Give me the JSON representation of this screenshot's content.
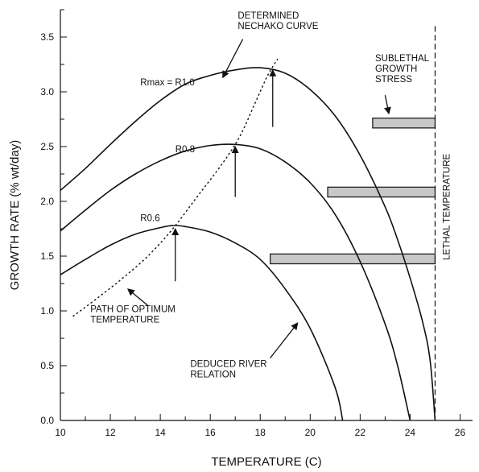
{
  "chart_data": {
    "type": "line",
    "xlabel": "TEMPERATURE (C)",
    "ylabel": "GROWTH RATE (% wt/day)",
    "xlim": [
      10,
      26.5
    ],
    "ylim": [
      0,
      3.75
    ],
    "x_ticks": [
      10,
      12,
      14,
      16,
      18,
      20,
      22,
      24,
      26
    ],
    "y_ticks": [
      0.0,
      0.5,
      1.0,
      1.5,
      2.0,
      2.5,
      3.0,
      3.5
    ],
    "x_tick_labels": [
      "10",
      "12",
      "14",
      "16",
      "18",
      "20",
      "22",
      "24",
      "26"
    ],
    "y_tick_labels": [
      "0.0",
      "0.5",
      "1.0",
      "1.5",
      "2.0",
      "2.5",
      "3.0",
      "3.5"
    ],
    "grid": false,
    "series": [
      {
        "name": "Rmax = R1.0",
        "style": "solid",
        "points": [
          [
            10,
            2.1
          ],
          [
            11,
            2.3
          ],
          [
            12,
            2.52
          ],
          [
            13,
            2.73
          ],
          [
            14,
            2.92
          ],
          [
            15,
            3.07
          ],
          [
            16,
            3.15
          ],
          [
            17,
            3.2
          ],
          [
            18,
            3.22
          ],
          [
            19,
            3.17
          ],
          [
            20,
            3.02
          ],
          [
            21,
            2.78
          ],
          [
            22,
            2.42
          ],
          [
            23,
            1.95
          ],
          [
            23.5,
            1.65
          ],
          [
            24,
            1.3
          ],
          [
            24.5,
            0.9
          ],
          [
            24.8,
            0.55
          ],
          [
            25,
            0.0
          ]
        ]
      },
      {
        "name": "R0.8",
        "style": "solid",
        "points": [
          [
            10,
            1.73
          ],
          [
            11,
            1.92
          ],
          [
            12,
            2.1
          ],
          [
            13,
            2.25
          ],
          [
            14,
            2.37
          ],
          [
            15,
            2.46
          ],
          [
            16,
            2.51
          ],
          [
            17,
            2.52
          ],
          [
            18,
            2.48
          ],
          [
            19,
            2.36
          ],
          [
            20,
            2.17
          ],
          [
            21,
            1.88
          ],
          [
            22,
            1.45
          ],
          [
            23,
            0.88
          ],
          [
            23.5,
            0.5
          ],
          [
            24,
            0.0
          ]
        ]
      },
      {
        "name": "R0.6",
        "style": "solid",
        "points": [
          [
            10,
            1.33
          ],
          [
            11,
            1.47
          ],
          [
            12,
            1.6
          ],
          [
            13,
            1.7
          ],
          [
            14,
            1.76
          ],
          [
            14.5,
            1.78
          ],
          [
            15,
            1.77
          ],
          [
            16,
            1.72
          ],
          [
            17,
            1.62
          ],
          [
            18,
            1.47
          ],
          [
            19,
            1.2
          ],
          [
            20,
            0.84
          ],
          [
            21,
            0.3
          ],
          [
            21.3,
            0.0
          ]
        ]
      },
      {
        "name": "PATH OF OPTIMUM TEMPERATURE",
        "style": "dashed",
        "points": [
          [
            10.5,
            0.95
          ],
          [
            11.5,
            1.12
          ],
          [
            12.5,
            1.3
          ],
          [
            13.5,
            1.5
          ],
          [
            14.5,
            1.75
          ],
          [
            15.5,
            2.05
          ],
          [
            16.5,
            2.35
          ],
          [
            17.2,
            2.6
          ],
          [
            17.8,
            2.9
          ],
          [
            18.3,
            3.15
          ],
          [
            18.7,
            3.3
          ]
        ]
      }
    ],
    "lethal_temperature": {
      "label": "LETHAL TEMPERATURE",
      "x": 25
    },
    "sublethal_bars": [
      {
        "x_start": 22.5,
        "x_end": 25,
        "y_low": 2.67,
        "y_high": 2.76
      },
      {
        "x_start": 20.7,
        "x_end": 25,
        "y_low": 2.04,
        "y_high": 2.13
      },
      {
        "x_start": 18.4,
        "x_end": 25,
        "y_low": 1.43,
        "y_high": 1.52
      }
    ],
    "optimum_arrows": [
      {
        "x": 18.5,
        "y_from": 2.68,
        "y_to": 3.2
      },
      {
        "x": 17.0,
        "y_from": 2.04,
        "y_to": 2.5
      },
      {
        "x": 14.6,
        "y_from": 1.27,
        "y_to": 1.75
      }
    ],
    "annotations": [
      {
        "id": "determined-nechako",
        "lines": [
          "DETERMINED",
          "NECHAKO CURVE"
        ],
        "x": 17.1,
        "y": 3.67,
        "arrow": {
          "from": [
            17.3,
            3.48
          ],
          "to": [
            16.5,
            3.13
          ]
        }
      },
      {
        "id": "rmax-label",
        "lines": [
          "Rmax = R1.0"
        ],
        "x": 13.2,
        "y": 3.06
      },
      {
        "id": "r08-label",
        "lines": [
          "R0.8"
        ],
        "x": 14.6,
        "y": 2.45
      },
      {
        "id": "r06-label",
        "lines": [
          "R0.6"
        ],
        "x": 13.2,
        "y": 1.82
      },
      {
        "id": "sublethal-stress",
        "lines": [
          "SUBLETHAL",
          "GROWTH",
          "STRESS"
        ],
        "x": 22.6,
        "y": 3.28,
        "arrow": {
          "from": [
            23.0,
            2.97
          ],
          "to": [
            23.15,
            2.8
          ]
        }
      },
      {
        "id": "path-optimum",
        "lines": [
          "PATH OF OPTIMUM",
          "TEMPERATURE"
        ],
        "x": 11.2,
        "y": 0.99,
        "arrow": {
          "from": [
            13.5,
            1.05
          ],
          "to": [
            12.7,
            1.2
          ]
        }
      },
      {
        "id": "deduced-river",
        "lines": [
          "DEDUCED RIVER",
          "RELATION"
        ],
        "x": 15.2,
        "y": 0.49,
        "arrow": {
          "from": [
            18.4,
            0.57
          ],
          "to": [
            19.5,
            0.89
          ]
        }
      }
    ]
  }
}
